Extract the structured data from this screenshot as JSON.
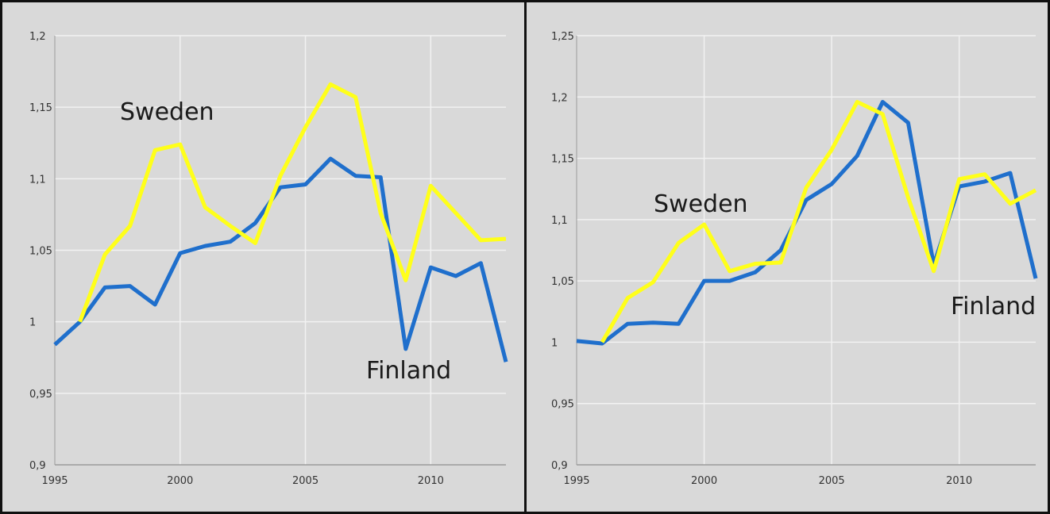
{
  "chart_data": [
    {
      "type": "line",
      "x": [
        1995,
        1996,
        1997,
        1998,
        1999,
        2000,
        2001,
        2002,
        2003,
        2004,
        2005,
        2006,
        2007,
        2008,
        2009,
        2010,
        2011,
        2012,
        2013
      ],
      "xticks": [
        1995,
        2000,
        2005,
        2010
      ],
      "xlim": [
        1995,
        2013
      ],
      "ylim": [
        0.9,
        1.2
      ],
      "yticks": [
        0.9,
        0.95,
        1.0,
        1.05,
        1.1,
        1.15,
        1.2
      ],
      "ytick_labels": [
        "0,9",
        "0,95",
        "1",
        "1,05",
        "1,1",
        "1,15",
        "1,2"
      ],
      "grid": "vertical and horizontal",
      "series": [
        {
          "name": "Sweden",
          "color": "#ffff1a",
          "x": [
            1996,
            1997,
            1998,
            1999,
            2000,
            2001,
            2002,
            2003,
            2004,
            2005,
            2006,
            2007,
            2008,
            2009,
            2010,
            2011,
            2012,
            2013
          ],
          "values": [
            1.0,
            1.047,
            1.067,
            1.12,
            1.124,
            1.08,
            1.067,
            1.055,
            1.102,
            1.136,
            1.166,
            1.157,
            1.076,
            1.029,
            1.095,
            1.076,
            1.057,
            1.058
          ]
        },
        {
          "name": "Finland",
          "color": "#1f6fcc",
          "values": [
            0.984,
            1.0,
            1.024,
            1.025,
            1.012,
            1.048,
            1.053,
            1.056,
            1.069,
            1.094,
            1.096,
            1.114,
            1.102,
            1.101,
            0.981,
            1.038,
            1.032,
            1.041,
            0.972
          ]
        }
      ]
    },
    {
      "type": "line",
      "x": [
        1995,
        1996,
        1997,
        1998,
        1999,
        2000,
        2001,
        2002,
        2003,
        2004,
        2005,
        2006,
        2007,
        2008,
        2009,
        2010,
        2011,
        2012,
        2013
      ],
      "xticks": [
        1995,
        2000,
        2005,
        2010
      ],
      "xlim": [
        1995,
        2013
      ],
      "ylim": [
        0.9,
        1.25
      ],
      "yticks": [
        0.9,
        0.95,
        1.0,
        1.05,
        1.1,
        1.15,
        1.2,
        1.25
      ],
      "ytick_labels": [
        "0,9",
        "0,95",
        "1",
        "1,05",
        "1,1",
        "1,15",
        "1,2",
        "1,25"
      ],
      "grid": "vertical and horizontal",
      "series": [
        {
          "name": "Sweden",
          "color": "#ffff1a",
          "x": [
            1996,
            1997,
            1998,
            1999,
            2000,
            2001,
            2002,
            2003,
            2004,
            2005,
            2006,
            2007,
            2008,
            2009,
            2010,
            2011,
            2012,
            2013
          ],
          "values": [
            1.0,
            1.036,
            1.049,
            1.081,
            1.096,
            1.058,
            1.064,
            1.065,
            1.126,
            1.157,
            1.196,
            1.186,
            1.118,
            1.058,
            1.133,
            1.137,
            1.113,
            1.124
          ]
        },
        {
          "name": "Finland",
          "color": "#1f6fcc",
          "values": [
            1.001,
            0.999,
            1.015,
            1.016,
            1.015,
            1.05,
            1.05,
            1.057,
            1.075,
            1.116,
            1.129,
            1.152,
            1.196,
            1.179,
            1.063,
            1.127,
            1.131,
            1.138,
            1.052
          ]
        }
      ]
    }
  ]
}
